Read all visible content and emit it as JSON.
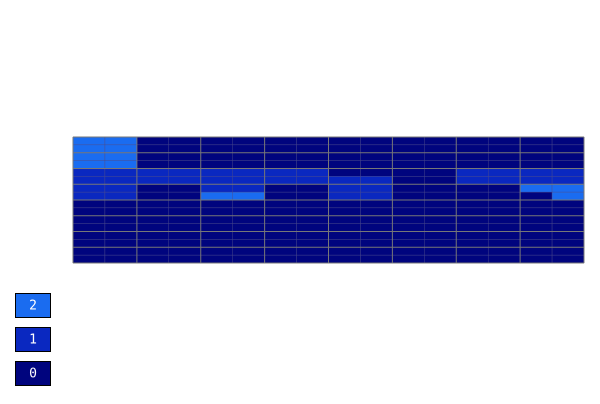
{
  "chart_data": {
    "type": "heatmap",
    "values": [
      [
        2,
        2,
        0,
        0,
        0,
        0,
        0,
        0,
        0,
        0,
        0,
        0,
        0,
        0,
        0,
        0
      ],
      [
        2,
        2,
        0,
        0,
        0,
        0,
        0,
        0,
        0,
        0,
        0,
        0,
        0,
        0,
        0,
        0
      ],
      [
        2,
        2,
        0,
        0,
        0,
        0,
        0,
        0,
        0,
        0,
        0,
        0,
        0,
        0,
        0,
        0
      ],
      [
        2,
        2,
        0,
        0,
        0,
        0,
        0,
        0,
        0,
        0,
        0,
        0,
        0,
        0,
        0,
        0
      ],
      [
        1,
        1,
        1,
        1,
        1,
        1,
        1,
        1,
        0,
        0,
        0,
        0,
        1,
        1,
        1,
        1
      ],
      [
        1,
        1,
        1,
        1,
        1,
        1,
        1,
        1,
        1,
        1,
        0,
        0,
        1,
        1,
        1,
        1
      ],
      [
        1,
        1,
        0,
        0,
        1,
        1,
        0,
        0,
        1,
        1,
        0,
        0,
        0,
        0,
        2,
        2
      ],
      [
        1,
        1,
        0,
        0,
        2,
        2,
        0,
        0,
        1,
        1,
        0,
        0,
        0,
        0,
        0,
        2
      ],
      [
        0,
        0,
        0,
        0,
        0,
        0,
        0,
        0,
        0,
        0,
        0,
        0,
        0,
        0,
        0,
        0
      ],
      [
        0,
        0,
        0,
        0,
        0,
        0,
        0,
        0,
        0,
        0,
        0,
        0,
        0,
        0,
        0,
        0
      ],
      [
        0,
        0,
        0,
        0,
        0,
        0,
        0,
        0,
        0,
        0,
        0,
        0,
        0,
        0,
        0,
        0
      ],
      [
        0,
        0,
        0,
        0,
        0,
        0,
        0,
        0,
        0,
        0,
        0,
        0,
        0,
        0,
        0,
        0
      ],
      [
        0,
        0,
        0,
        0,
        0,
        0,
        0,
        0,
        0,
        0,
        0,
        0,
        0,
        0,
        0,
        0
      ],
      [
        0,
        0,
        0,
        0,
        0,
        0,
        0,
        0,
        0,
        0,
        0,
        0,
        0,
        0,
        0,
        0
      ],
      [
        0,
        0,
        0,
        0,
        0,
        0,
        0,
        0,
        0,
        0,
        0,
        0,
        0,
        0,
        0,
        0
      ],
      [
        0,
        0,
        0,
        0,
        0,
        0,
        0,
        0,
        0,
        0,
        0,
        0,
        0,
        0,
        0,
        0
      ]
    ],
    "colorscale": [
      {
        "value": 2,
        "color": "#1a6cf0"
      },
      {
        "value": 1,
        "color": "#0a28c0"
      },
      {
        "value": 0,
        "color": "#00047e"
      }
    ]
  }
}
